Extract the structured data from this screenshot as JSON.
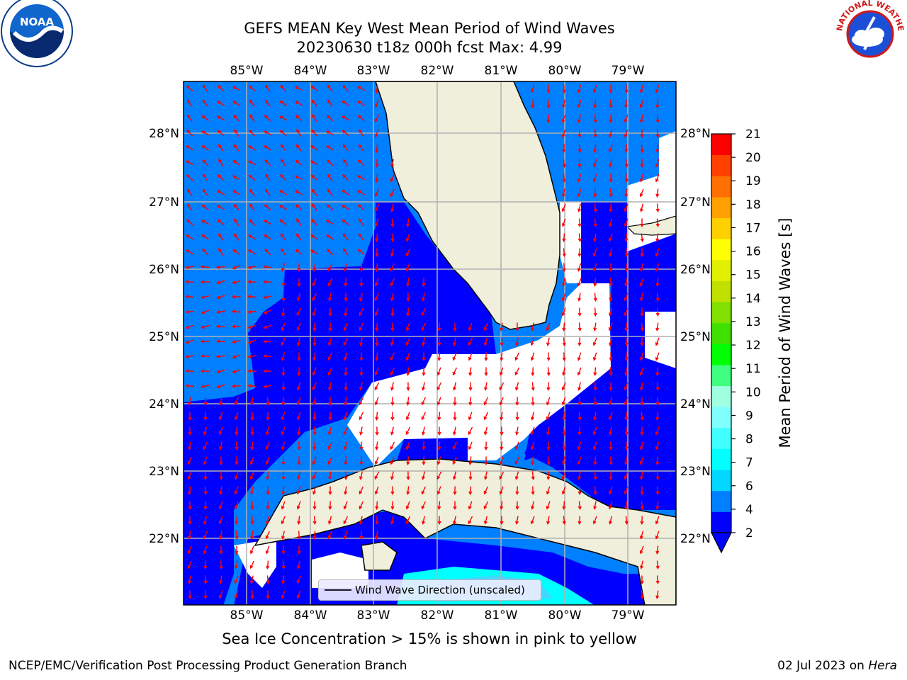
{
  "header": {
    "title_line1": "GEFS MEAN Key West Mean Period of Wind Waves",
    "title_line2": "20230630 t18z 000h fcst   Max: 4.99"
  },
  "logos": {
    "left": "noaa-logo",
    "left_text": "NOAA",
    "right": "nws-logo",
    "right_text": "NATIONAL WEATHER SERVICE"
  },
  "map": {
    "lon_ticks": [
      "85°W",
      "84°W",
      "83°W",
      "82°W",
      "81°W",
      "80°W",
      "79°W"
    ],
    "lat_ticks": [
      "28°N",
      "27°N",
      "26°N",
      "25°N",
      "24°N",
      "23°N",
      "22°N"
    ],
    "legend_label": "Wind Wave Direction (unscaled)",
    "colors": {
      "dark_blue": "#0000ff",
      "medium_blue": "#0080ff",
      "cyan": "#00ffff",
      "light_cyan": "#40e0ff",
      "land": "#efefdc",
      "arrow": "#ff0000",
      "grid": "#b0b0b0"
    }
  },
  "colorbar": {
    "label": "Mean Period of Wind Waves [s]",
    "ticks": [
      "2",
      "4",
      "6",
      "7",
      "8",
      "9",
      "10",
      "11",
      "12",
      "13",
      "14",
      "15",
      "16",
      "17",
      "18",
      "19",
      "20",
      "21"
    ],
    "colors": [
      "#0000ff",
      "#0080ff",
      "#00d8ff",
      "#00ffff",
      "#40ffff",
      "#80ffff",
      "#a0ffe0",
      "#40ff80",
      "#00ff00",
      "#40e000",
      "#80e000",
      "#c0e000",
      "#e0f000",
      "#ffff00",
      "#ffd000",
      "#ffa000",
      "#ff7000",
      "#ff4000",
      "#ff0000"
    ]
  },
  "notes": {
    "sea_ice": "Sea Ice Concentration > 15% is shown in pink to yellow",
    "footer_left": "NCEP/EMC/Verification Post Processing Product Generation Branch",
    "footer_right_prefix": "02 Jul 2023 on ",
    "footer_right_host": "Hera"
  }
}
